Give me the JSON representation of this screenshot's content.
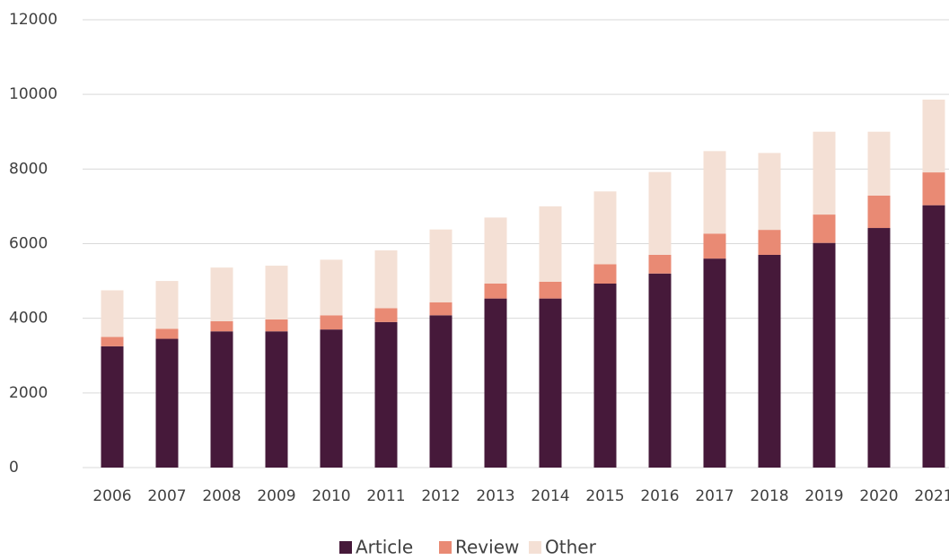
{
  "chart_data": {
    "type": "stacked_bar",
    "categories": [
      "2006",
      "2007",
      "2008",
      "2009",
      "2010",
      "2011",
      "2012",
      "2013",
      "2014",
      "2015",
      "2016",
      "2017",
      "2018",
      "2019",
      "2020",
      "2021"
    ],
    "series": [
      {
        "name": "Article",
        "color": "#46193a",
        "values": [
          3250,
          3450,
          3650,
          3650,
          3700,
          3900,
          4080,
          4530,
          4530,
          4930,
          5200,
          5600,
          5700,
          6020,
          6420,
          7030
        ]
      },
      {
        "name": "Review",
        "color": "#e98a74",
        "values": [
          250,
          270,
          270,
          320,
          380,
          370,
          350,
          400,
          450,
          520,
          500,
          670,
          670,
          760,
          870,
          880
        ]
      },
      {
        "name": "Other",
        "color": "#f4e0d5",
        "values": [
          1250,
          1280,
          1440,
          1440,
          1490,
          1550,
          1950,
          1770,
          2020,
          1950,
          2220,
          2210,
          2060,
          2220,
          1710,
          1950
        ]
      }
    ],
    "ylim": [
      0,
      12000
    ],
    "yticks": [
      0,
      2000,
      4000,
      6000,
      8000,
      10000,
      12000
    ],
    "grid": true,
    "legend": "bottom"
  }
}
